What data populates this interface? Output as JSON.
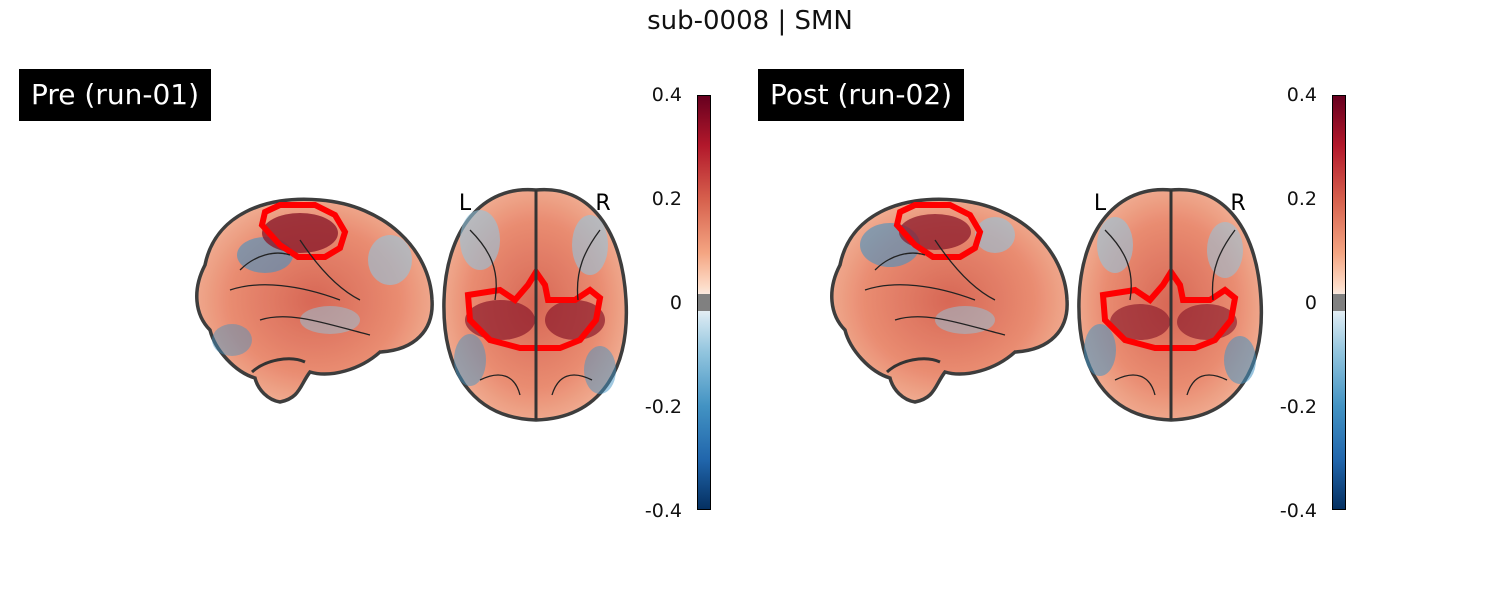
{
  "title": "sub-0008 | SMN",
  "panels": [
    {
      "label": "Pre (run-01)",
      "orientation_left": "L",
      "orientation_right": "R",
      "colorbar": {
        "ticks": [
          "0.4",
          "0.2",
          "0",
          "-0.2",
          "-0.4"
        ],
        "vmin": -0.4,
        "vmax": 0.4
      }
    },
    {
      "label": "Post (run-02)",
      "orientation_left": "L",
      "orientation_right": "R",
      "colorbar": {
        "ticks": [
          "0.4",
          "0.2",
          "0",
          "-0.2",
          "-0.4"
        ],
        "vmin": -0.4,
        "vmax": 0.4
      }
    }
  ],
  "colors": {
    "outline": "#ff0000",
    "positive": "#b2182b",
    "negative": "#2166ac"
  }
}
